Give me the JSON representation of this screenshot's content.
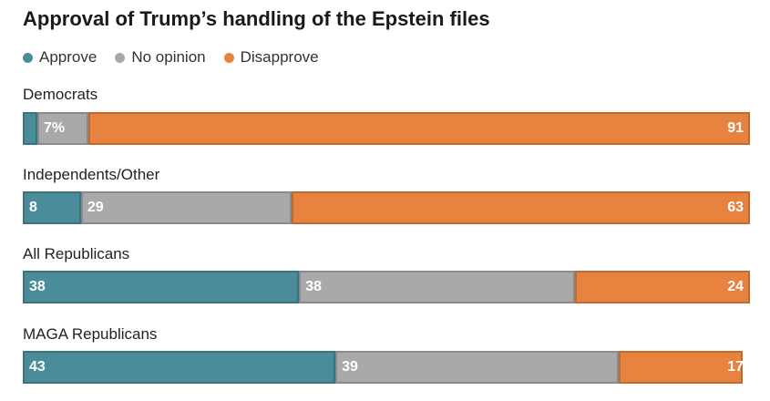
{
  "title": "Approval of Trump’s handling of the Epstein files",
  "colors": {
    "approve": "#4a8c99",
    "no_opinion": "#a9a9a9",
    "disapprove": "#e8833f"
  },
  "legend": [
    {
      "key": "approve",
      "label": "Approve"
    },
    {
      "key": "no_opinion",
      "label": "No opinion"
    },
    {
      "key": "disapprove",
      "label": "Disapprove"
    }
  ],
  "chart_data": {
    "type": "bar",
    "orientation": "horizontal-stacked",
    "title": "Approval of Trump’s handling of the Epstein files",
    "unit": "%",
    "categories": [
      "Democrats",
      "Independents/Other",
      "All Republicans",
      "MAGA Republicans"
    ],
    "series": [
      {
        "name": "Approve",
        "key": "approve",
        "values": [
          2,
          8,
          38,
          43
        ]
      },
      {
        "name": "No opinion",
        "key": "no_opinion",
        "values": [
          7,
          29,
          38,
          39
        ]
      },
      {
        "name": "Disapprove",
        "key": "disapprove",
        "values": [
          91,
          63,
          24,
          17
        ]
      }
    ],
    "data_labels": [
      [
        "",
        "7%",
        "91"
      ],
      [
        "8",
        "29",
        "63"
      ],
      [
        "38",
        "38",
        "24"
      ],
      [
        "43",
        "39",
        "17"
      ]
    ],
    "xlim": [
      0,
      100
    ],
    "grid": false,
    "legend_position": "top-left"
  }
}
